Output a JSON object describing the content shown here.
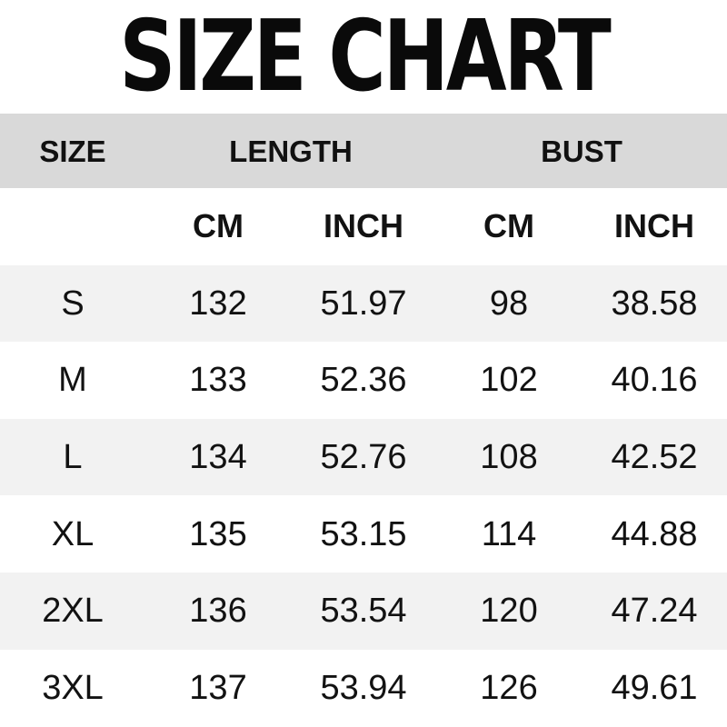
{
  "title": "SIZE CHART",
  "colors": {
    "background": "#ffffff",
    "group_header_bg": "#d9d9d9",
    "alt_row_bg": "#f2f2f2",
    "text": "#111111"
  },
  "chart_data": {
    "type": "table",
    "title": "SIZE CHART",
    "group_headers": [
      {
        "label": "SIZE",
        "span": 1
      },
      {
        "label": "LENGTH",
        "span": 2
      },
      {
        "label": "BUST",
        "span": 2
      }
    ],
    "unit_headers": [
      "",
      "CM",
      "INCH",
      "CM",
      "INCH"
    ],
    "rows": [
      {
        "size": "S",
        "length_cm": "132",
        "length_inch": "51.97",
        "bust_cm": "98",
        "bust_inch": "38.58"
      },
      {
        "size": "M",
        "length_cm": "133",
        "length_inch": "52.36",
        "bust_cm": "102",
        "bust_inch": "40.16"
      },
      {
        "size": "L",
        "length_cm": "134",
        "length_inch": "52.76",
        "bust_cm": "108",
        "bust_inch": "42.52"
      },
      {
        "size": "XL",
        "length_cm": "135",
        "length_inch": "53.15",
        "bust_cm": "114",
        "bust_inch": "44.88"
      },
      {
        "size": "2XL",
        "length_cm": "136",
        "length_inch": "53.54",
        "bust_cm": "120",
        "bust_inch": "47.24"
      },
      {
        "size": "3XL",
        "length_cm": "137",
        "length_inch": "53.94",
        "bust_cm": "126",
        "bust_inch": "49.61"
      }
    ]
  }
}
